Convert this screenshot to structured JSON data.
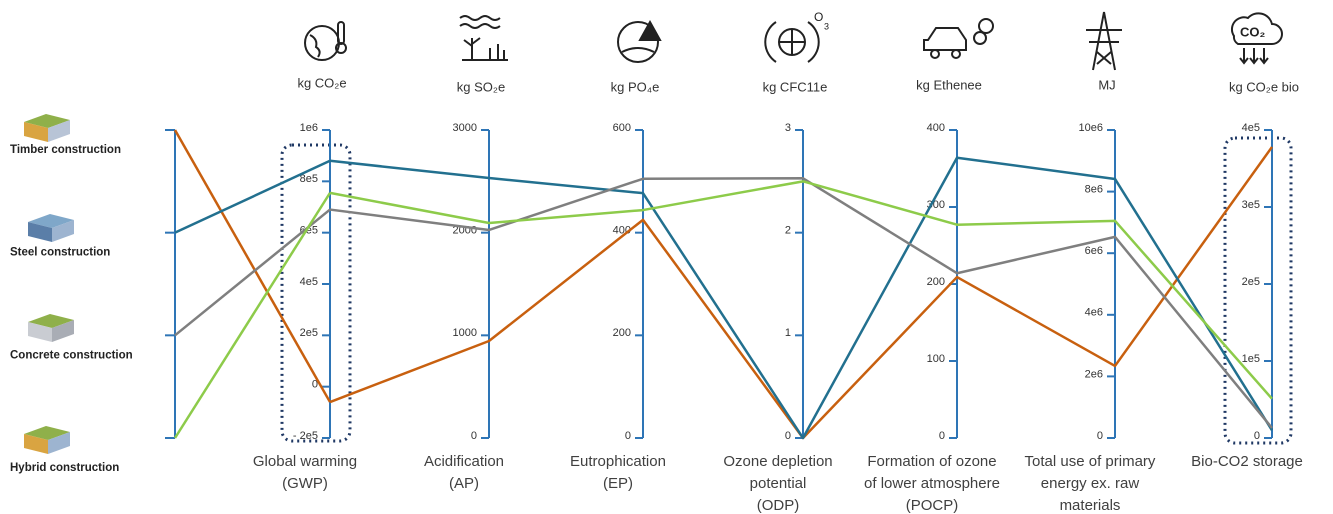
{
  "chart_data": {
    "type": "parallel",
    "series": [
      {
        "name": "Timber construction",
        "color": "#c8600f",
        "values": [
          -60000,
          945,
          425,
          0,
          209,
          2340000,
          378000
        ]
      },
      {
        "name": "Steel construction",
        "color": "#22708f",
        "values": [
          880000,
          2532,
          477,
          0,
          364,
          8410000,
          10000
        ]
      },
      {
        "name": "Concrete construction",
        "color": "#7f7f7f",
        "values": [
          690000,
          2026,
          505,
          2.53,
          214,
          6530000,
          13000
        ]
      },
      {
        "name": "Hybrid construction",
        "color": "#8dcb4a",
        "values": [
          755000,
          2094,
          444,
          2.5,
          277,
          7050000,
          51000
        ]
      }
    ],
    "axes": [
      {
        "label": [
          "Global warming",
          "(GWP)"
        ],
        "unit": "kg CO₂e",
        "lim": [
          -200000,
          1000000
        ],
        "ticks": [
          {
            "value": -200000,
            "label": "- 2e5"
          },
          {
            "value": 0,
            "label": "0"
          },
          {
            "value": 200000,
            "label": "2e5"
          },
          {
            "value": 400000,
            "label": "4e5"
          },
          {
            "value": 600000,
            "label": "6e5"
          },
          {
            "value": 800000,
            "label": "8e5"
          },
          {
            "value": 1000000,
            "label": "1e6"
          }
        ]
      },
      {
        "label": [
          "Acidification",
          "(AP)"
        ],
        "unit": "kg SO₂e",
        "lim": [
          0,
          3000
        ],
        "ticks": [
          0,
          1000,
          2000,
          3000
        ]
      },
      {
        "label": [
          "Eutrophication",
          "(EP)"
        ],
        "unit": "kg PO₄e",
        "lim": [
          0,
          600
        ],
        "ticks": [
          0,
          200,
          400,
          600
        ]
      },
      {
        "label": [
          "Ozone depletion",
          "potential",
          "(ODP)"
        ],
        "unit": "kg CFC11e",
        "lim": [
          0,
          3
        ],
        "ticks": [
          0,
          1,
          2,
          3
        ]
      },
      {
        "label": [
          "Formation of ozone",
          "of lower atmosphere",
          "(POCP)"
        ],
        "unit": "kg Ethenee",
        "lim": [
          0,
          400
        ],
        "ticks": [
          0,
          100,
          200,
          300,
          400
        ]
      },
      {
        "label": [
          "Total use of primary",
          "energy ex. raw",
          "materials"
        ],
        "unit": "MJ",
        "lim": [
          0,
          10000000
        ],
        "ticks": [
          0,
          {
            "value": 2000000,
            "label": "2e6"
          },
          {
            "value": 4000000,
            "label": "4e6"
          },
          {
            "value": 6000000,
            "label": "6e6"
          },
          {
            "value": 8000000,
            "label": "8e6"
          },
          {
            "value": 10000000,
            "label": "10e6"
          }
        ]
      },
      {
        "label": [
          "Bio-CO2 storage"
        ],
        "unit": "kg CO₂e bio",
        "lim": [
          0,
          400000
        ],
        "ticks": [
          0,
          {
            "value": 100000,
            "label": "1e5"
          },
          {
            "value": 200000,
            "label": "2e5"
          },
          {
            "value": 300000,
            "label": "3e5"
          },
          {
            "value": 400000,
            "label": "4e5"
          }
        ]
      }
    ]
  }
}
